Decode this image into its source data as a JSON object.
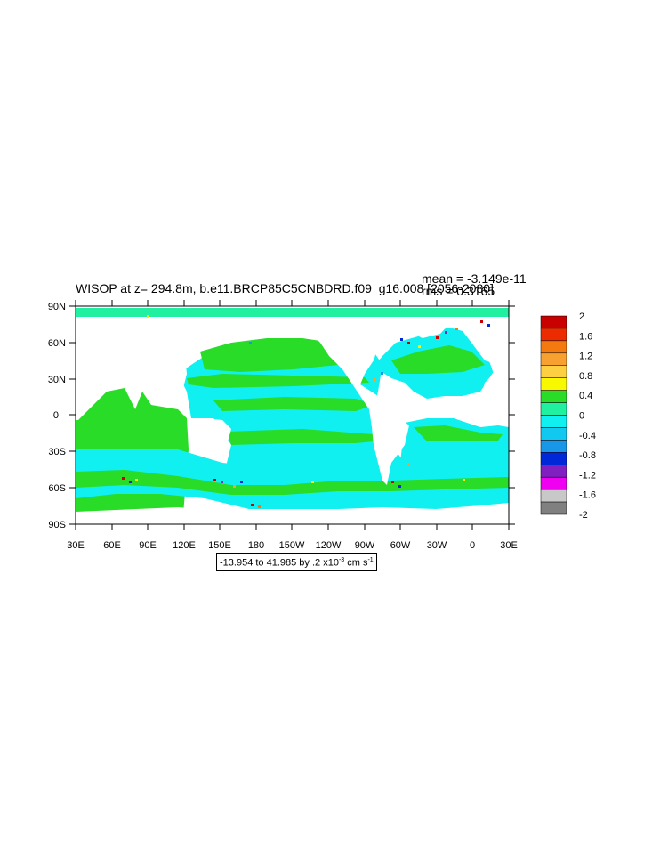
{
  "title": "WISOP at z= 294.8m, b.e11.BRCP85C5CNBDRD.f09_g16.008 [2056-2080]",
  "stats": {
    "mean": "mean = -3.149e-11",
    "rms": "rms = 0.3165"
  },
  "range": {
    "text": "-13.954 to 41.985 by .2 x10",
    "exp": "-3",
    "units": " cm s",
    "units_exp": "-1"
  },
  "lat_labels": [
    "90N",
    "60N",
    "30N",
    "0",
    "30S",
    "60S",
    "90S"
  ],
  "lon_labels": [
    "30E",
    "60E",
    "90E",
    "120E",
    "150E",
    "180",
    "150W",
    "120W",
    "90W",
    "60W",
    "30W",
    "0",
    "30E"
  ],
  "colorbar": {
    "labels": [
      "2",
      "1.6",
      "1.2",
      "0.8",
      "0.4",
      "0",
      "-0.4",
      "-0.8",
      "-1.2",
      "-1.6",
      "-2"
    ],
    "colors": [
      "#c80000",
      "#ec2c00",
      "#f47a10",
      "#f8a030",
      "#fcd040",
      "#f8f800",
      "#28dc28",
      "#20f0a0",
      "#10f0f0",
      "#10c8f0",
      "#1896e8",
      "#0028d8",
      "#8020c0",
      "#f000f0",
      "#c8c8c8",
      "#808080"
    ]
  }
}
